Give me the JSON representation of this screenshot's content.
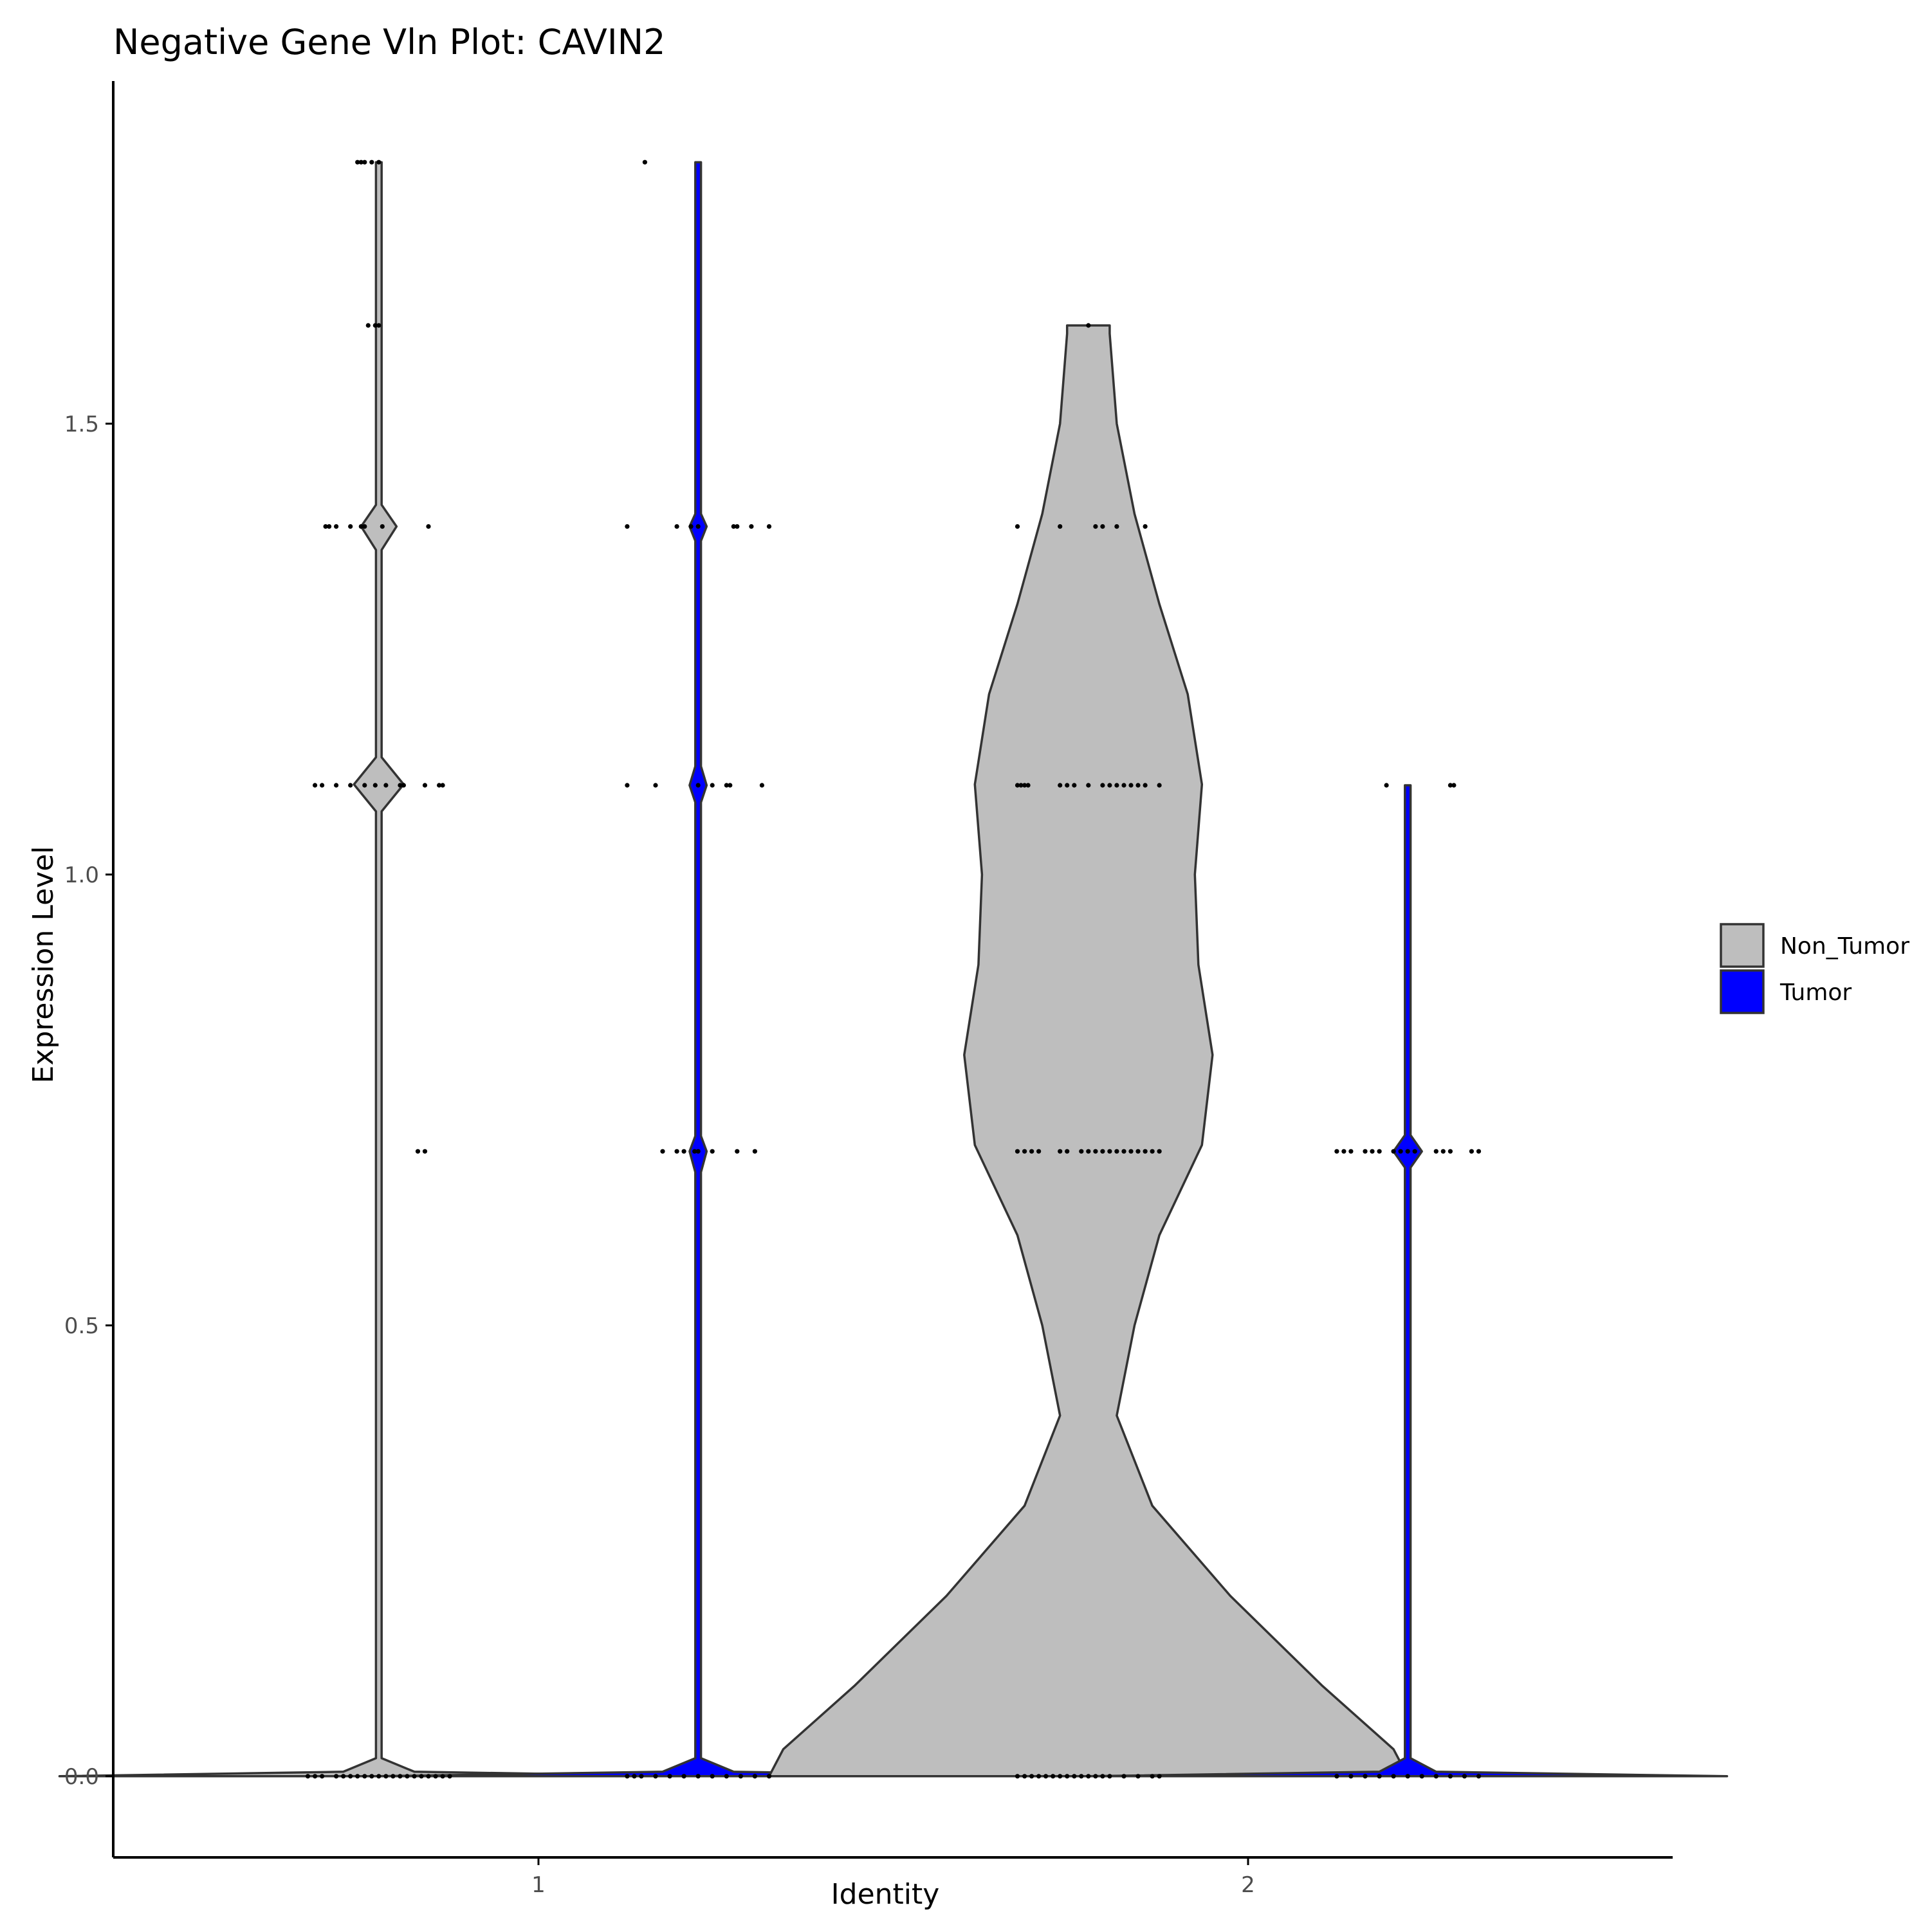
{
  "chart_data": {
    "type": "violin",
    "title": "Negative Gene Vln Plot: CAVIN2",
    "xlabel": "Identity",
    "ylabel": "Expression Level",
    "categories": [
      "1",
      "2"
    ],
    "yticks": [
      "0.0",
      "0.5",
      "1.0",
      "1.5"
    ],
    "ylim": [
      -0.09,
      1.88
    ],
    "grid": false,
    "legend_position": "right",
    "colors": {
      "Non_Tumor": "#bebebe",
      "Tumor": "#0000ff",
      "outline": "#333333",
      "points": "#000000",
      "axis": "#000000",
      "tick_text": "#4d4d4d"
    },
    "series": [
      {
        "name": "Non_Tumor",
        "color": "#bebebe"
      },
      {
        "name": "Tumor",
        "color": "#0000ff"
      }
    ],
    "violins": [
      {
        "identity": "1",
        "group": "Non_Tumor",
        "x_offset": -0.225,
        "max": 1.79,
        "profile": [
          [
            0.0,
            0.45
          ],
          [
            0.005,
            0.05
          ],
          [
            0.02,
            0.004
          ],
          [
            1.07,
            0.004
          ],
          [
            1.1,
            0.035
          ],
          [
            1.13,
            0.004
          ],
          [
            1.36,
            0.004
          ],
          [
            1.386,
            0.025
          ],
          [
            1.41,
            0.004
          ],
          [
            1.79,
            0.004
          ]
        ],
        "points": [
          {
            "y": 1.79,
            "dx": [
              -0.03,
              -0.025,
              -0.02,
              -0.01,
              0.0
            ]
          },
          {
            "y": 1.609,
            "dx": [
              -0.015,
              -0.005,
              0.0
            ]
          },
          {
            "y": 1.386,
            "dx": [
              -0.075,
              -0.07,
              -0.06,
              -0.04,
              -0.025,
              -0.02,
              0.005,
              0.07
            ]
          },
          {
            "y": 1.099,
            "dx": [
              -0.09,
              -0.08,
              -0.06,
              -0.04,
              -0.02,
              -0.005,
              0.01,
              0.03,
              0.035,
              0.065,
              0.085,
              0.09
            ]
          },
          {
            "y": 0.693,
            "dx": [
              0.055,
              0.065
            ]
          },
          {
            "y": 0.0,
            "dx": [
              -0.1,
              -0.09,
              -0.08,
              -0.06,
              -0.05,
              -0.04,
              -0.03,
              -0.02,
              -0.01,
              0.0,
              0.01,
              0.02,
              0.03,
              0.04,
              0.05,
              0.06,
              0.07,
              0.08,
              0.09,
              0.1
            ]
          }
        ]
      },
      {
        "identity": "1",
        "group": "Tumor",
        "x_offset": 0.225,
        "max": 1.79,
        "profile": [
          [
            0.0,
            0.45
          ],
          [
            0.005,
            0.05
          ],
          [
            0.02,
            0.004
          ],
          [
            0.67,
            0.004
          ],
          [
            0.693,
            0.012
          ],
          [
            0.71,
            0.004
          ],
          [
            1.08,
            0.004
          ],
          [
            1.099,
            0.012
          ],
          [
            1.12,
            0.004
          ],
          [
            1.37,
            0.004
          ],
          [
            1.386,
            0.012
          ],
          [
            1.4,
            0.004
          ],
          [
            1.79,
            0.004
          ]
        ],
        "points": [
          {
            "y": 1.79,
            "dx": [
              -0.075
            ]
          },
          {
            "y": 1.386,
            "dx": [
              -0.1,
              -0.03,
              -0.01,
              0.0,
              0.05,
              0.055,
              0.075,
              0.1
            ]
          },
          {
            "y": 1.099,
            "dx": [
              -0.1,
              -0.06,
              0.0,
              0.02,
              0.04,
              0.045,
              0.09
            ]
          },
          {
            "y": 0.693,
            "dx": [
              -0.05,
              -0.03,
              -0.02,
              -0.005,
              0.0,
              0.02,
              0.055,
              0.08
            ]
          },
          {
            "y": 0.0,
            "dx": [
              -0.1,
              -0.09,
              -0.08,
              -0.06,
              -0.04,
              -0.02,
              0.0,
              0.02,
              0.04,
              0.06,
              0.08,
              0.1
            ]
          }
        ]
      },
      {
        "identity": "2",
        "group": "Non_Tumor",
        "x_offset": -0.225,
        "max": 1.609,
        "profile": [
          [
            0.0,
            0.45
          ],
          [
            0.03,
            0.43
          ],
          [
            0.1,
            0.33
          ],
          [
            0.2,
            0.2
          ],
          [
            0.3,
            0.09
          ],
          [
            0.4,
            0.04
          ],
          [
            0.5,
            0.065
          ],
          [
            0.6,
            0.1
          ],
          [
            0.7,
            0.16
          ],
          [
            0.8,
            0.175
          ],
          [
            0.9,
            0.155
          ],
          [
            1.0,
            0.15
          ],
          [
            1.1,
            0.16
          ],
          [
            1.2,
            0.14
          ],
          [
            1.3,
            0.1
          ],
          [
            1.4,
            0.065
          ],
          [
            1.5,
            0.04
          ],
          [
            1.6,
            0.03
          ],
          [
            1.609,
            0.03
          ]
        ],
        "points": [
          {
            "y": 1.609,
            "dx": [
              0.0
            ]
          },
          {
            "y": 1.386,
            "dx": [
              -0.1,
              -0.04,
              0.01,
              0.02,
              0.04,
              0.08
            ]
          },
          {
            "y": 1.099,
            "dx": [
              -0.1,
              -0.095,
              -0.09,
              -0.085,
              -0.04,
              -0.03,
              -0.02,
              0.0,
              0.02,
              0.03,
              0.04,
              0.05,
              0.06,
              0.07,
              0.08,
              0.1
            ]
          },
          {
            "y": 0.693,
            "dx": [
              -0.1,
              -0.09,
              -0.08,
              -0.07,
              -0.04,
              -0.03,
              -0.01,
              0.0,
              0.01,
              0.02,
              0.03,
              0.04,
              0.05,
              0.06,
              0.07,
              0.08,
              0.09,
              0.1
            ]
          },
          {
            "y": 0.0,
            "dx": [
              -0.1,
              -0.09,
              -0.08,
              -0.07,
              -0.06,
              -0.05,
              -0.04,
              -0.03,
              -0.02,
              -0.01,
              0.0,
              0.01,
              0.02,
              0.03,
              0.05,
              0.07,
              0.09,
              0.1
            ]
          }
        ]
      },
      {
        "identity": "2",
        "group": "Tumor",
        "x_offset": 0.225,
        "max": 1.099,
        "profile": [
          [
            0.0,
            0.45
          ],
          [
            0.005,
            0.04
          ],
          [
            0.02,
            0.004
          ],
          [
            0.675,
            0.004
          ],
          [
            0.693,
            0.02
          ],
          [
            0.711,
            0.004
          ],
          [
            1.099,
            0.004
          ]
        ],
        "points": [
          {
            "y": 1.099,
            "dx": [
              -0.03,
              0.06,
              0.065
            ]
          },
          {
            "y": 0.693,
            "dx": [
              -0.1,
              -0.09,
              -0.08,
              -0.06,
              -0.05,
              -0.04,
              -0.02,
              -0.01,
              0.0,
              0.01,
              0.04,
              0.05,
              0.06,
              0.09,
              0.1
            ]
          },
          {
            "y": 0.0,
            "dx": [
              -0.1,
              -0.08,
              -0.06,
              -0.04,
              -0.02,
              0.0,
              0.02,
              0.04,
              0.06,
              0.08,
              0.1
            ]
          }
        ]
      }
    ]
  }
}
